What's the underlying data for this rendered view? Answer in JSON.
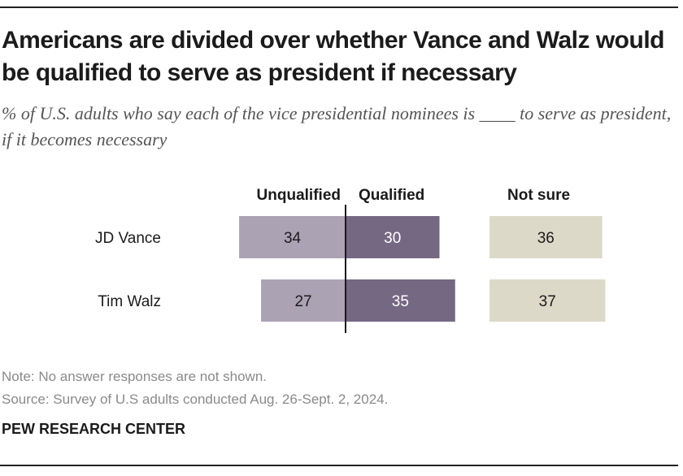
{
  "header": {
    "title": "Americans are divided over whether Vance and Walz would be qualified to serve as president if necessary",
    "subtitle": "% of U.S. adults who say each of the vice presidential nominees is ____ to serve as president, if it becomes necessary"
  },
  "footer": {
    "note": "Note: No answer responses are not shown.",
    "source": "Source: Survey of U.S adults conducted Aug. 26-Sept. 2, 2024.",
    "brand": "PEW RESEARCH CENTER"
  },
  "colors": {
    "unqualified": "#aba2b4",
    "qualified": "#756883",
    "not_sure": "#dcd9c8",
    "axis": "#1b1b1b",
    "dark_text": "#1b1b1b",
    "light_text": "#ffffff"
  },
  "chart_data": {
    "type": "bar",
    "orientation": "horizontal-diverging",
    "categories": [
      "JD Vance",
      "Tim Walz"
    ],
    "series": [
      {
        "name": "Unqualified",
        "values": [
          34,
          27
        ]
      },
      {
        "name": "Qualified",
        "values": [
          30,
          35
        ]
      },
      {
        "name": "Not sure",
        "values": [
          36,
          37
        ]
      }
    ],
    "title": "",
    "xlabel": "",
    "ylabel": ""
  }
}
